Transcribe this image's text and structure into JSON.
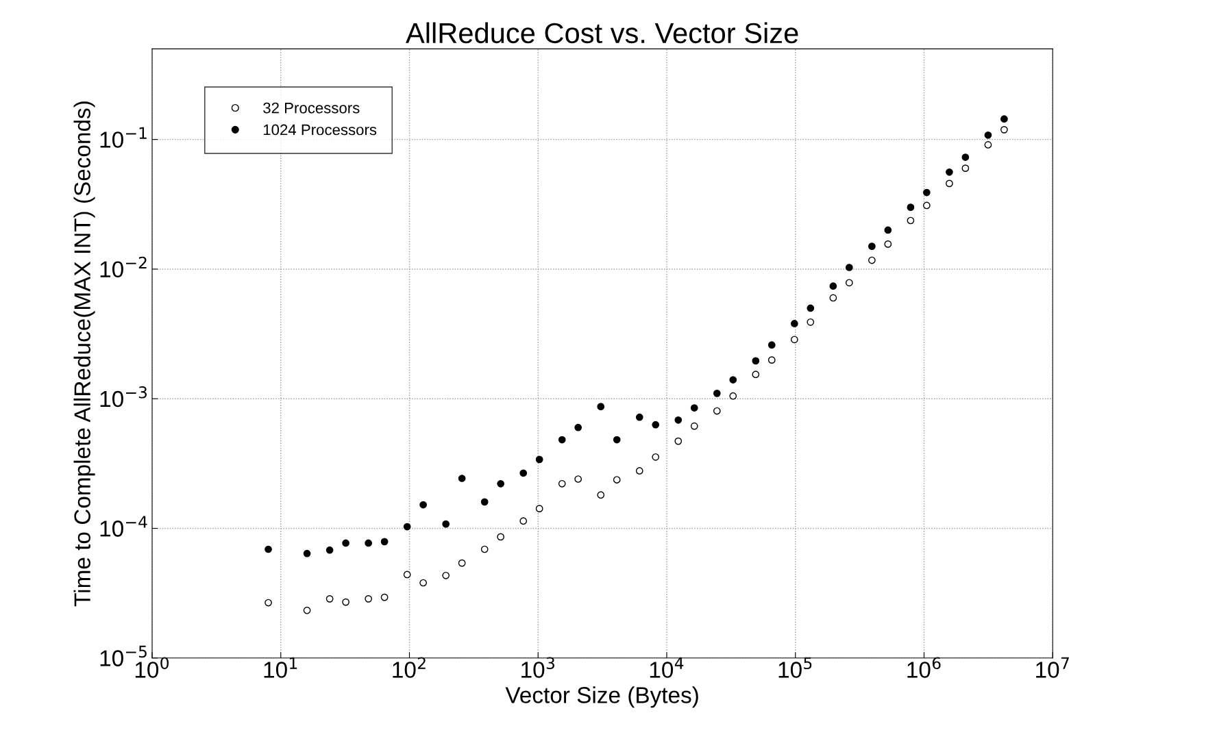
{
  "chart_data": {
    "type": "scatter",
    "title": "AllReduce Cost vs. Vector Size",
    "xlabel": "Vector Size (Bytes)",
    "ylabel": "Time to Complete AllReduce(MAX INT) (Seconds)",
    "log": "xy",
    "grid": true,
    "legend": "top left",
    "marker": "circle",
    "xlim": [
      1,
      10000000
    ],
    "ylim": [
      1e-05,
      0.5
    ],
    "xticks": [
      {
        "value": 1,
        "label": "10$^{0}$"
      },
      {
        "value": 10,
        "label": "10$^{1}$"
      },
      {
        "value": 100,
        "label": "10$^{2}$"
      },
      {
        "value": 1000,
        "label": "10$^{3}$"
      },
      {
        "value": 10000,
        "label": "10$^{4}$"
      },
      {
        "value": 100000,
        "label": "10$^{5}$"
      },
      {
        "value": 1000000,
        "label": "10$^{6}$"
      },
      {
        "value": 10000000,
        "label": "10$^{7}$"
      }
    ],
    "yticks": [
      {
        "value": 1e-05,
        "label": "10$^{−5}$"
      },
      {
        "value": 0.0001,
        "label": "10$^{−4}$"
      },
      {
        "value": 0.001,
        "label": "10$^{−3}$"
      },
      {
        "value": 0.01,
        "label": "10$^{−2}$"
      },
      {
        "value": 0.1,
        "label": "10$^{−1}$"
      }
    ],
    "x": [
      8,
      16,
      24,
      32,
      48,
      64,
      96,
      128,
      192,
      256,
      384,
      512,
      768,
      1024,
      1536,
      2048,
      3072,
      4096,
      6144,
      8192,
      12288,
      16384,
      24576,
      32768,
      49152,
      65536,
      98304,
      131072,
      196608,
      262144,
      393216,
      524288,
      786432,
      1048576,
      1572864,
      2097152,
      3145728,
      4194304
    ],
    "series": [
      {
        "name": "32 Processors",
        "color": "#ffffff",
        "values": [
          2.67e-05,
          2.33e-05,
          2.86e-05,
          2.7e-05,
          2.86e-05,
          2.94e-05,
          4.4e-05,
          3.8e-05,
          4.33e-05,
          5.4e-05,
          6.9e-05,
          8.6e-05,
          0.000114,
          0.000142,
          0.000221,
          0.00024,
          0.000181,
          0.000237,
          0.000278,
          0.000355,
          0.000471,
          0.000615,
          0.000805,
          0.00105,
          0.00154,
          0.00199,
          0.00286,
          0.0039,
          0.006,
          0.00785,
          0.0117,
          0.0156,
          0.0237,
          0.031,
          0.0458,
          0.06,
          0.091,
          0.119
        ]
      },
      {
        "name": "1024 Processors",
        "color": "#000000",
        "values": [
          6.9e-05,
          6.4e-05,
          6.8e-05,
          7.7e-05,
          7.7e-05,
          7.9e-05,
          0.000103,
          0.000152,
          0.000108,
          0.000243,
          0.00016,
          0.000221,
          0.000267,
          0.00034,
          0.000483,
          0.0006,
          0.00087,
          0.000483,
          0.00072,
          0.00063,
          0.000685,
          0.00085,
          0.0011,
          0.0014,
          0.00196,
          0.0026,
          0.0038,
          0.005,
          0.0074,
          0.0103,
          0.015,
          0.02,
          0.03,
          0.039,
          0.056,
          0.073,
          0.108,
          0.144
        ]
      }
    ]
  }
}
